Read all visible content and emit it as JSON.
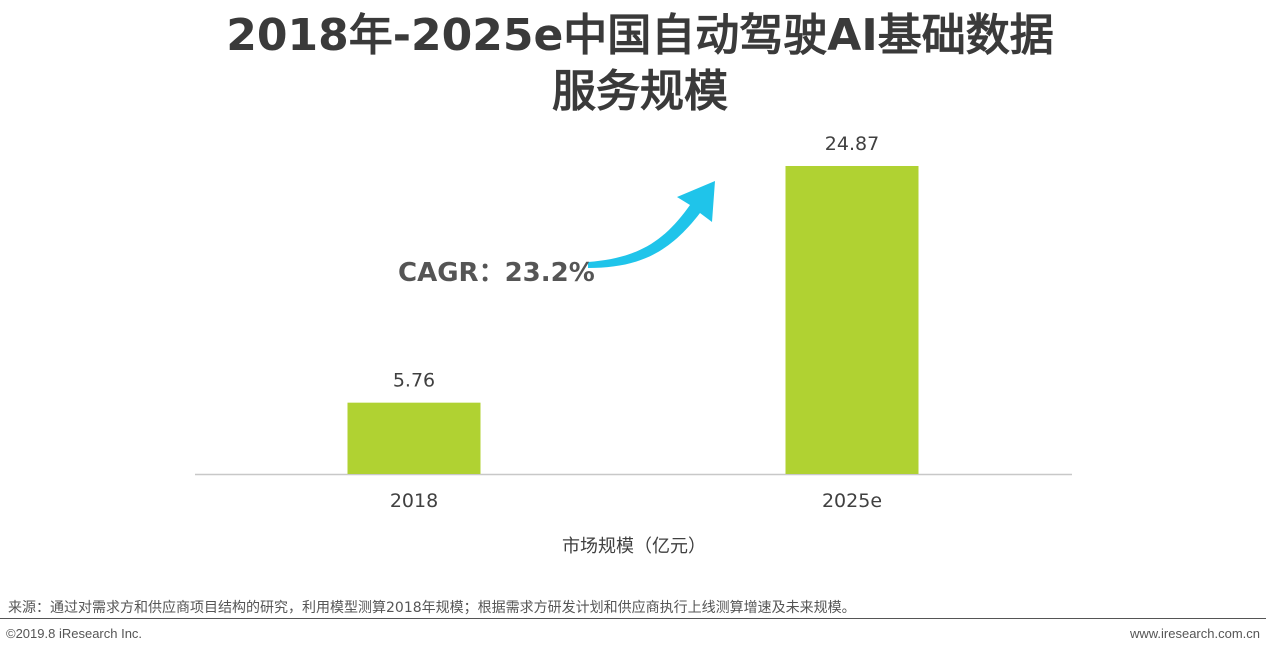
{
  "title_line1": "2018年-2025e中国自动驾驶AI基础数据",
  "title_line2": "服务规模",
  "chart_data": {
    "type": "bar",
    "categories": [
      "2018",
      "2025e"
    ],
    "values": [
      5.76,
      24.87
    ],
    "value_labels": [
      "5.76",
      "24.87"
    ],
    "xlabel": "市场规模（亿元）",
    "ylim": [
      0,
      26
    ],
    "grid": false,
    "bar_color": "#b0d232",
    "annotation": {
      "text": "CAGR：23.2%",
      "arrow_color": "#1fc4ea"
    }
  },
  "source": "来源：通过对需求方和供应商项目结构的研究，利用模型测算2018年规模；根据需求方研发计划和供应商执行上线测算增速及未来规模。",
  "copyright": "©2019.8 iResearch Inc.",
  "website": "www.iresearch.com.cn"
}
